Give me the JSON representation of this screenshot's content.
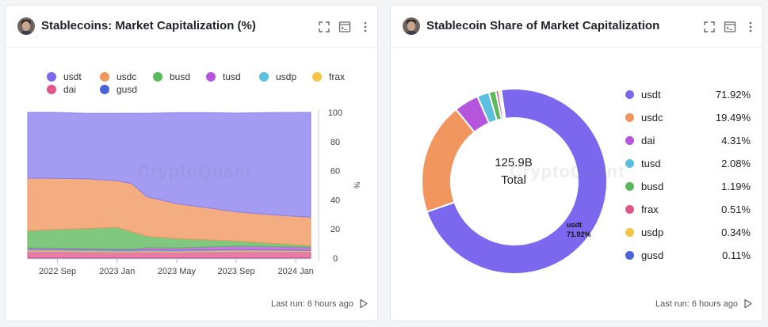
{
  "left_card": {
    "title": "Stablecoins: Market Capitalization (%)",
    "footer": "Last run: 6 hours ago",
    "watermark": "CryptoQuant",
    "y_axis_label": "%"
  },
  "right_card": {
    "title": "Stablecoin Share of Market Capitalization",
    "footer": "Last run: 6 hours ago",
    "watermark": "CryptoQuant",
    "center_value": "125.9B",
    "center_label": "Total",
    "slice_label_name": "usdt",
    "slice_label_value": "71.92%"
  },
  "icons": [
    "fullscreen-icon",
    "terminal-icon",
    "more-vertical-icon",
    "play-icon"
  ],
  "chart_data": [
    {
      "type": "area",
      "stacked": true,
      "title": "Stablecoins: Market Capitalization (%)",
      "x_ticks": [
        "2022 Sep",
        "2023 Jan",
        "2023 May",
        "2023 Sep",
        "2024 Jan"
      ],
      "x_range": [
        "2022-07",
        "2024-02"
      ],
      "ylabel": "%",
      "y_ticks": [
        0,
        20,
        40,
        60,
        80,
        100
      ],
      "ylim": [
        0,
        100
      ],
      "legend_position": "top",
      "x": [
        "2022-07",
        "2022-09",
        "2022-11",
        "2023-01",
        "2023-02",
        "2023-03",
        "2023-05",
        "2023-07",
        "2023-09",
        "2023-11",
        "2024-01",
        "2024-02"
      ],
      "series": [
        {
          "name": "gusd",
          "color": "#5b6fe0",
          "values": [
            0.2,
            0.2,
            0.2,
            0.2,
            0.2,
            0.2,
            0.2,
            0.2,
            0.2,
            0.2,
            0.2,
            0.2
          ]
        },
        {
          "name": "dai",
          "color": "#e0578b",
          "values": [
            4.5,
            4.5,
            4.2,
            4.0,
            4.0,
            4.2,
            4.0,
            4.3,
            4.5,
            4.5,
            4.4,
            4.3
          ]
        },
        {
          "name": "frax",
          "color": "#f2c544",
          "values": [
            0.6,
            0.6,
            0.6,
            0.6,
            0.6,
            0.6,
            0.6,
            0.6,
            0.6,
            0.6,
            0.5,
            0.5
          ]
        },
        {
          "name": "usdp",
          "color": "#5bc0de",
          "values": [
            0.7,
            0.7,
            0.7,
            0.7,
            0.6,
            0.6,
            0.6,
            0.5,
            0.5,
            0.4,
            0.4,
            0.3
          ]
        },
        {
          "name": "tusd",
          "color": "#b455dc",
          "values": [
            0.9,
            0.8,
            0.7,
            0.7,
            0.7,
            1.5,
            1.5,
            2.0,
            2.5,
            2.3,
            2.1,
            2.1
          ]
        },
        {
          "name": "busd",
          "color": "#5cb85c",
          "values": [
            12,
            13,
            14,
            15,
            12,
            8,
            6.5,
            5,
            3.5,
            2.5,
            1.6,
            1.2
          ]
        },
        {
          "name": "usdc",
          "color": "#f0965e",
          "values": [
            36,
            35,
            34,
            32,
            33,
            27,
            24,
            22,
            20,
            19.5,
            19.5,
            19.5
          ]
        },
        {
          "name": "usdt",
          "color": "#8a7fef",
          "values": [
            45.1,
            45.2,
            44.9,
            46.1,
            48.3,
            57.3,
            62.5,
            65.3,
            67.7,
            69.9,
            71.3,
            71.9
          ]
        }
      ]
    },
    {
      "type": "pie",
      "donut": true,
      "title": "Stablecoin Share of Market Capitalization",
      "total": "125.9B",
      "categories": [
        "usdt",
        "usdc",
        "dai",
        "tusd",
        "busd",
        "frax",
        "usdp",
        "gusd"
      ],
      "values": [
        71.92,
        19.49,
        4.31,
        2.08,
        1.19,
        0.51,
        0.34,
        0.11
      ],
      "labels": [
        "71.92%",
        "19.49%",
        "4.31%",
        "2.08%",
        "1.19%",
        "0.51%",
        "0.34%",
        "0.11%"
      ],
      "colors": [
        "#7b68ee",
        "#f0965e",
        "#b455dc",
        "#5bc0de",
        "#5cb85c",
        "#e0578b",
        "#f2c544",
        "#4a63d8"
      ]
    }
  ],
  "left_legend": [
    {
      "name": "usdt",
      "color": "#7b68ee"
    },
    {
      "name": "usdc",
      "color": "#f0965e"
    },
    {
      "name": "busd",
      "color": "#5cb85c"
    },
    {
      "name": "tusd",
      "color": "#b455dc"
    },
    {
      "name": "usdp",
      "color": "#5bc0de"
    },
    {
      "name": "frax",
      "color": "#f2c544"
    },
    {
      "name": "dai",
      "color": "#e0578b"
    },
    {
      "name": "gusd",
      "color": "#4a63d8"
    }
  ]
}
